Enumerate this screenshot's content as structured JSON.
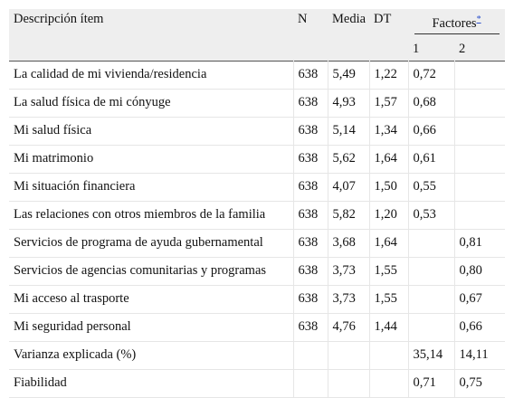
{
  "header": {
    "descripcion": "Descripción ítem",
    "n": "N",
    "media": "Media",
    "dt": "DT",
    "factores": "Factores",
    "factores_ref": "*",
    "factor1": "1",
    "factor2": "2"
  },
  "rows": [
    {
      "item": "La calidad de mi vivienda/residencia",
      "n": "638",
      "media": "5,49",
      "dt": "1,22",
      "f1": "0,72",
      "f2": ""
    },
    {
      "item": "La salud física de mi cónyuge",
      "n": "638",
      "media": "4,93",
      "dt": "1,57",
      "f1": "0,68",
      "f2": ""
    },
    {
      "item": "Mi salud física",
      "n": "638",
      "media": "5,14",
      "dt": "1,34",
      "f1": "0,66",
      "f2": ""
    },
    {
      "item": "Mi matrimonio",
      "n": "638",
      "media": "5,62",
      "dt": "1,64",
      "f1": "0,61",
      "f2": ""
    },
    {
      "item": "Mi situación financiera",
      "n": "638",
      "media": "4,07",
      "dt": "1,50",
      "f1": "0,55",
      "f2": ""
    },
    {
      "item": "Las relaciones con otros miembros de la familia",
      "n": "638",
      "media": "5,82",
      "dt": "1,20",
      "f1": "0,53",
      "f2": ""
    },
    {
      "item": "Servicios de programa de ayuda gubernamental",
      "n": "638",
      "media": "3,68",
      "dt": "1,64",
      "f1": "",
      "f2": "0,81"
    },
    {
      "item": "Servicios de agencias comunitarias y programas",
      "n": "638",
      "media": "3,73",
      "dt": "1,55",
      "f1": "",
      "f2": "0,80"
    },
    {
      "item": "Mi acceso al trasporte",
      "n": "638",
      "media": "3,73",
      "dt": "1,55",
      "f1": "",
      "f2": "0,67"
    },
    {
      "item": "Mi seguridad personal",
      "n": "638",
      "media": "4,76",
      "dt": "1,44",
      "f1": "",
      "f2": "0,66"
    },
    {
      "item": "Varianza explicada (%)",
      "n": "",
      "media": "",
      "dt": "",
      "f1": "35,14",
      "f2": "14,11"
    },
    {
      "item": "Fiabilidad",
      "n": "",
      "media": "",
      "dt": "",
      "f1": "0,71",
      "f2": "0,75"
    }
  ]
}
